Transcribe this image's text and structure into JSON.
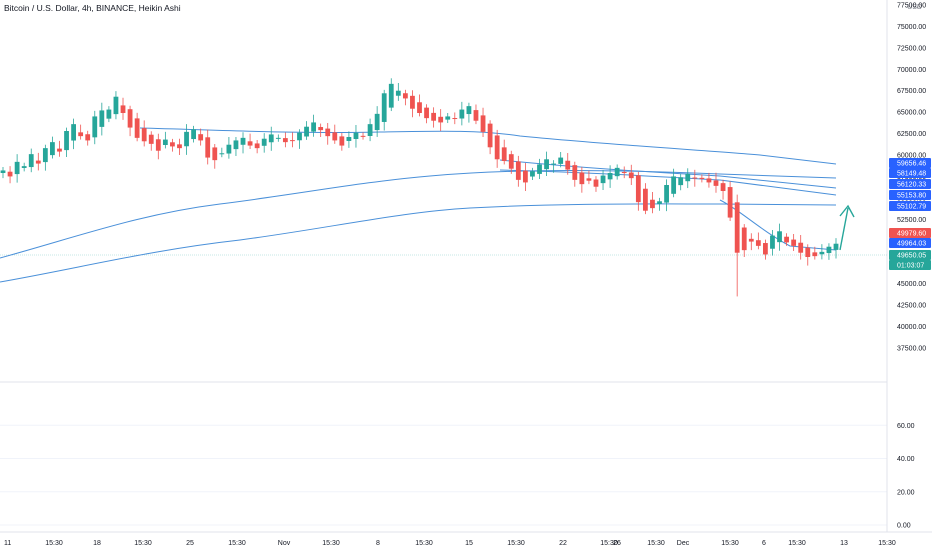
{
  "title": "Bitcoin / U.S. Dollar, 4h, BINANCE, Heikin Ashi",
  "currency": "USD",
  "colors": {
    "up": "#26a69a",
    "down": "#ef5350",
    "line": "#2962ff",
    "ma_line": "#4a90d9",
    "accent_arrow": "#26a69a",
    "tag_blue": "#2962ff",
    "tag_red": "#ef5350",
    "tag_green": "#26a69a"
  },
  "chart_data": {
    "type": "candlestick",
    "y_axis": {
      "range": [
        35500,
        77500
      ],
      "ticks": [
        "37500.00",
        "40000.00",
        "42500.00",
        "45000.00",
        "47500.00",
        "50000.00",
        "52500.00",
        "55000.00",
        "57500.00",
        "60000.00",
        "62500.00",
        "65000.00",
        "67500.00",
        "70000.00",
        "72500.00",
        "75000.00",
        "77500.00"
      ]
    },
    "x_axis": {
      "ticks": [
        "11",
        "15:30",
        "18",
        "15:30",
        "25",
        "15:30",
        "Nov",
        "15:30",
        "8",
        "15:30",
        "15",
        "15:30",
        "22",
        "15:30",
        "26",
        "15:30",
        "Dec",
        "15:30",
        "6",
        "15:30",
        "13",
        "15:30"
      ]
    },
    "price_tags": [
      {
        "label": "59656.46",
        "kind": "blue"
      },
      {
        "label": "58149.48",
        "kind": "blue"
      },
      {
        "label": "56120.33",
        "kind": "blue"
      },
      {
        "label": "55153.80",
        "kind": "blue"
      },
      {
        "label": "55102.79",
        "kind": "blue"
      },
      {
        "label": "49979.60",
        "kind": "red"
      },
      {
        "label": "49964.03",
        "kind": "blue"
      },
      {
        "label": "49650.05",
        "kind": "green"
      },
      {
        "label": "01:03:07",
        "kind": "green"
      }
    ],
    "oscillator": {
      "ticks": [
        "60.00",
        "40.00",
        "20.00",
        "0.00"
      ],
      "range": [
        0,
        80
      ]
    },
    "series_path_note": "",
    "closes": [
      58200,
      57500,
      59200,
      58700,
      60100,
      59000,
      60800,
      61500,
      60400,
      62800,
      63600,
      62200,
      61700,
      64500,
      65200,
      65300,
      66800,
      64900,
      63200,
      62000,
      61600,
      61300,
      60500,
      61800,
      61000,
      60800,
      62700,
      63000,
      61700,
      59700,
      59400,
      60200,
      61200,
      61700,
      62000,
      61100,
      60800,
      61900,
      62400,
      62000,
      61500,
      61700,
      62600,
      63300,
      63800,
      62900,
      62200,
      61700,
      61100,
      62100,
      62600,
      62200,
      63600,
      64800,
      67200,
      68300,
      67500,
      66600,
      65400,
      64900,
      64300,
      64000,
      63800,
      64500,
      64200,
      65300,
      65700,
      64000,
      62700,
      60900,
      59500,
      59300,
      58400,
      57100,
      56800,
      58100,
      58900,
      59500,
      59000,
      59700,
      58300,
      57100,
      56600,
      57000,
      56300,
      57600,
      57900,
      58500,
      57900,
      57300,
      54500,
      53500,
      53800,
      54600,
      56500,
      57500,
      57400,
      57800,
      57300,
      57200,
      56800,
      56400,
      55800,
      52700,
      48600,
      48900,
      49900,
      49400,
      48400,
      50600,
      51100,
      49800,
      49400,
      48600,
      48100,
      48200,
      48700,
      49300,
      49650
    ]
  }
}
